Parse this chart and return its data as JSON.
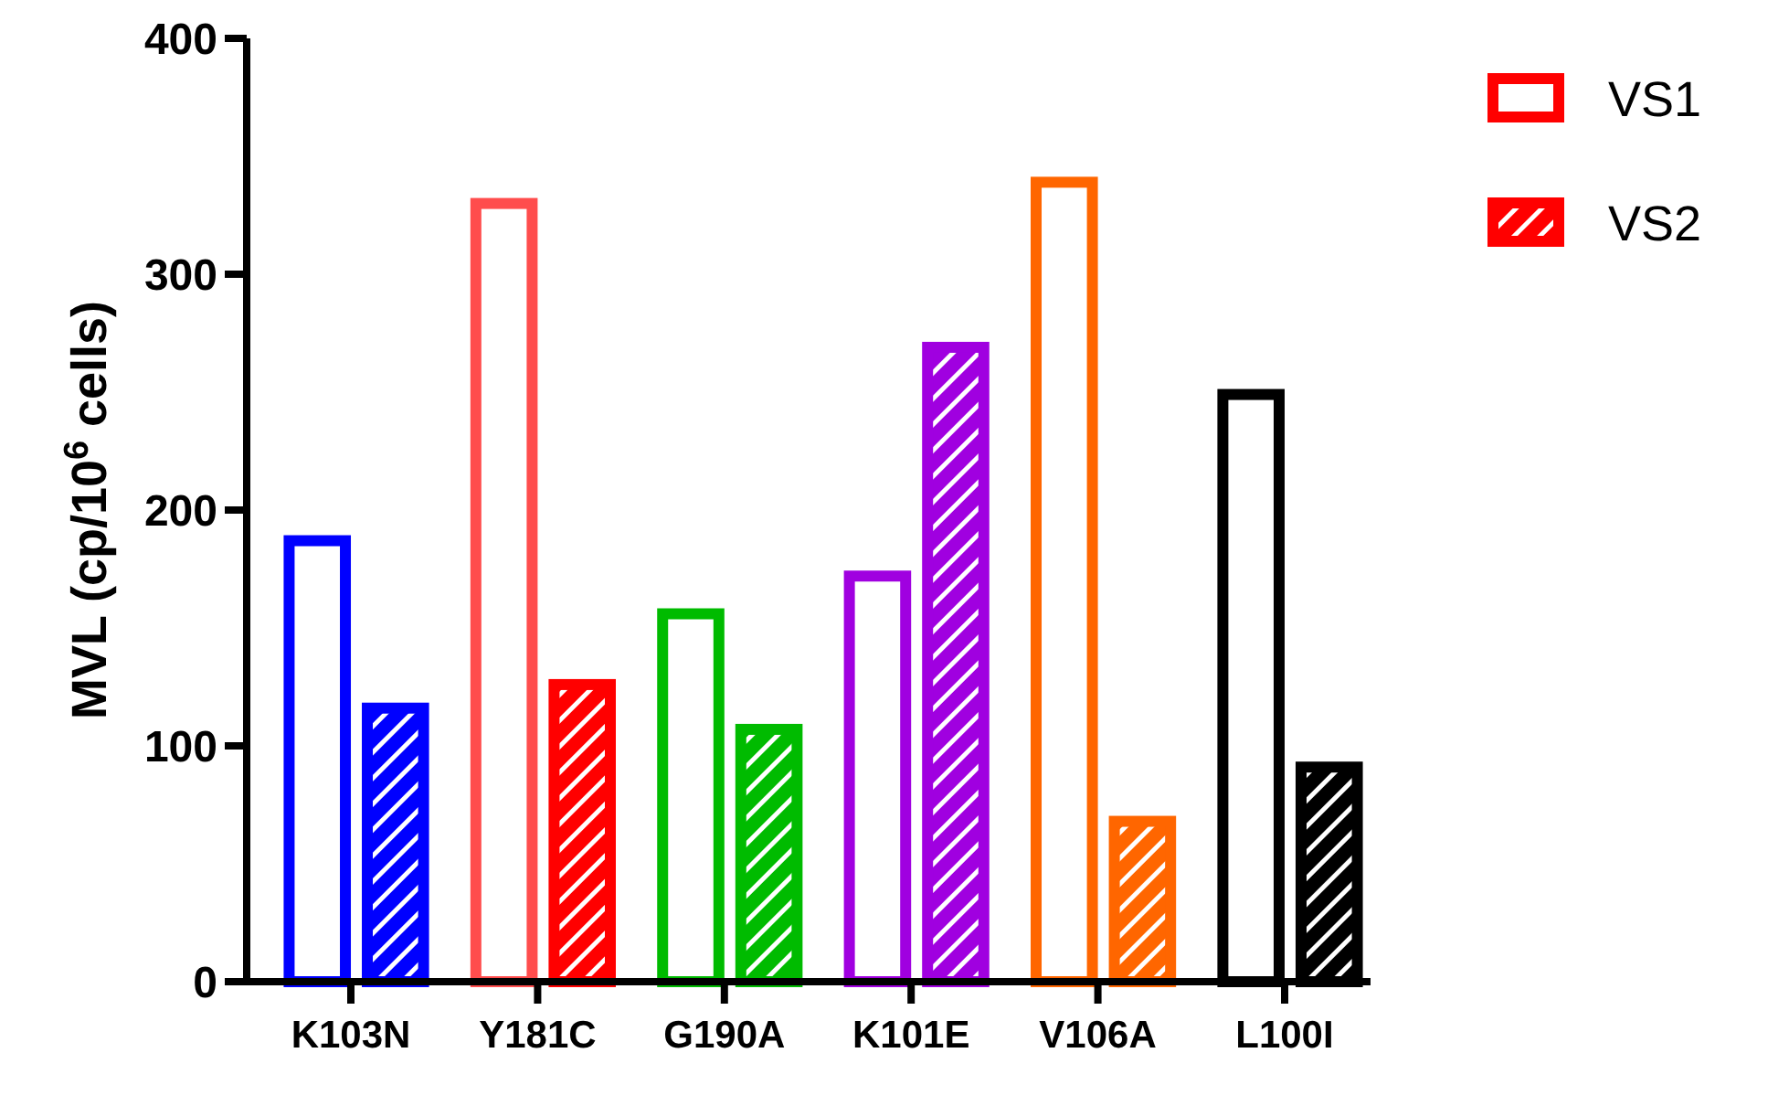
{
  "chart_data": {
    "type": "bar",
    "ylabel": "MVL (cp/10$^{6}$ cells)",
    "categories": [
      "K103N",
      "Y181C",
      "G190A",
      "K101E",
      "V106A",
      "L100I"
    ],
    "series": [
      {
        "name": "VS1",
        "color": "#ff0000",
        "colors": [
          "#0000ff",
          "#ff4d4d",
          "#00bb00",
          "#a000e0",
          "#ff6600",
          "#000000"
        ],
        "values": [
          187,
          330,
          156,
          172,
          339,
          249
        ]
      },
      {
        "name": "VS2",
        "color": "#ff0000",
        "colors": [
          "#0000ff",
          "#ff0000",
          "#00bb00",
          "#a000e0",
          "#ff6600",
          "#000000"
        ],
        "values": [
          116,
          126,
          107,
          269,
          68,
          91
        ]
      }
    ],
    "ylim": [
      0,
      400
    ],
    "yticks": [
      0,
      100,
      200,
      300,
      400
    ],
    "grid": false,
    "legend": "top right"
  }
}
